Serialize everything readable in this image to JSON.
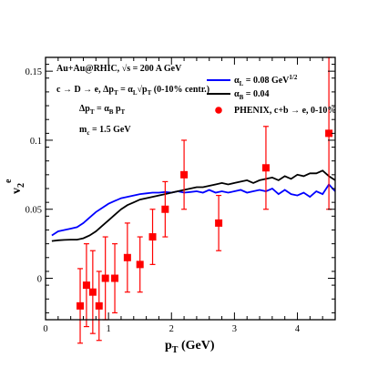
{
  "chart_data": {
    "type": "line",
    "xlabel": {
      "main": "p",
      "sub": "T",
      "rest": " (GeV)"
    },
    "ylabel": {
      "main": "v",
      "sup": "e",
      "sub": "2"
    },
    "xlim": [
      0,
      4.6
    ],
    "ylim": [
      -0.03,
      0.16
    ],
    "x_ticks": [
      0,
      1,
      2,
      3,
      4
    ],
    "y_ticks": [
      0,
      0.05,
      0.1,
      0.15
    ],
    "y_tick_labels": [
      "0",
      "0.05",
      "0.1",
      "0.15"
    ],
    "grid": false,
    "annotations": {
      "line1": {
        "text": "Au+Au@RHIC, ",
        "tail": "s = 200 A GeV"
      },
      "line2": {
        "a": "c → D → e, Δp",
        "b": "T",
        "c": " = α",
        "d": "L",
        "e": "√p",
        "f": "T",
        "g": " (0-10% centr.)"
      },
      "line3": {
        "a": "Δp",
        "b": "T",
        "c": " = α",
        "d": "B",
        "e": " p",
        "f": "T"
      },
      "line4": {
        "a": "m",
        "b": "c",
        "c": " = 1.5 GeV"
      }
    },
    "legend": {
      "position": "top-right",
      "entries": [
        {
          "main": "α",
          "sub": "L",
          "rest": " = 0.08 GeV",
          "sup": "1/2",
          "color": "#0000ff",
          "kind": "line"
        },
        {
          "main": "α",
          "sub": "B",
          "rest": " = 0.04",
          "sup": "",
          "color": "#000000",
          "kind": "line"
        },
        {
          "main": "PHENIX, c+b → e, 0-10%",
          "sub": "",
          "rest": "",
          "sup": "",
          "color": "#ff0000",
          "kind": "marker"
        }
      ]
    },
    "series": [
      {
        "color": "#0000ff",
        "x": [
          0.1,
          0.2,
          0.3,
          0.4,
          0.5,
          0.6,
          0.7,
          0.8,
          0.9,
          1.0,
          1.1,
          1.2,
          1.3,
          1.4,
          1.5,
          1.6,
          1.7,
          1.8,
          1.9,
          2.0,
          2.1,
          2.2,
          2.3,
          2.4,
          2.5,
          2.6,
          2.7,
          2.8,
          2.9,
          3.0,
          3.1,
          3.2,
          3.3,
          3.4,
          3.5,
          3.6,
          3.7,
          3.8,
          3.9,
          4.0,
          4.1,
          4.2,
          4.3,
          4.4,
          4.5,
          4.6
        ],
        "y": [
          0.031,
          0.034,
          0.035,
          0.036,
          0.037,
          0.04,
          0.044,
          0.048,
          0.051,
          0.054,
          0.056,
          0.058,
          0.059,
          0.06,
          0.061,
          0.0615,
          0.062,
          0.062,
          0.0625,
          0.062,
          0.063,
          0.062,
          0.0625,
          0.063,
          0.062,
          0.064,
          0.062,
          0.063,
          0.062,
          0.063,
          0.064,
          0.062,
          0.063,
          0.064,
          0.063,
          0.065,
          0.061,
          0.064,
          0.061,
          0.06,
          0.062,
          0.059,
          0.063,
          0.061,
          0.068,
          0.063
        ]
      },
      {
        "color": "#000000",
        "x": [
          0.1,
          0.2,
          0.3,
          0.4,
          0.5,
          0.6,
          0.7,
          0.8,
          0.9,
          1.0,
          1.1,
          1.2,
          1.3,
          1.4,
          1.5,
          1.6,
          1.7,
          1.8,
          1.9,
          2.0,
          2.1,
          2.2,
          2.3,
          2.4,
          2.5,
          2.6,
          2.7,
          2.8,
          2.9,
          3.0,
          3.1,
          3.2,
          3.3,
          3.4,
          3.5,
          3.6,
          3.7,
          3.8,
          3.9,
          4.0,
          4.1,
          4.2,
          4.3,
          4.4,
          4.5,
          4.6
        ],
        "y": [
          0.027,
          0.0275,
          0.0278,
          0.028,
          0.028,
          0.029,
          0.031,
          0.034,
          0.038,
          0.042,
          0.046,
          0.05,
          0.053,
          0.055,
          0.057,
          0.058,
          0.059,
          0.06,
          0.061,
          0.062,
          0.063,
          0.064,
          0.065,
          0.066,
          0.066,
          0.067,
          0.068,
          0.069,
          0.068,
          0.069,
          0.07,
          0.071,
          0.069,
          0.071,
          0.072,
          0.073,
          0.071,
          0.074,
          0.072,
          0.075,
          0.074,
          0.076,
          0.076,
          0.078,
          0.074,
          0.071
        ]
      },
      {
        "color": "#ff0000",
        "marker": true,
        "x": [
          0.55,
          0.65,
          0.75,
          0.85,
          0.95,
          1.1,
          1.3,
          1.5,
          1.7,
          1.9,
          2.2,
          2.75,
          3.5,
          4.5
        ],
        "y": [
          -0.02,
          -0.005,
          -0.01,
          -0.02,
          0.0,
          0.0,
          0.015,
          0.01,
          0.03,
          0.05,
          0.075,
          0.04,
          0.08,
          0.105
        ],
        "yerr": [
          0.027,
          0.03,
          0.03,
          0.025,
          0.03,
          0.025,
          0.025,
          0.02,
          0.02,
          0.02,
          0.025,
          0.02,
          0.03,
          0.055
        ],
        "xerr": [
          0.05,
          0.05,
          0.05,
          0.05,
          0.05,
          0.05,
          0.05,
          0.05,
          0.05,
          0.05,
          0.05,
          0.05,
          0.05,
          0.05
        ]
      }
    ]
  }
}
